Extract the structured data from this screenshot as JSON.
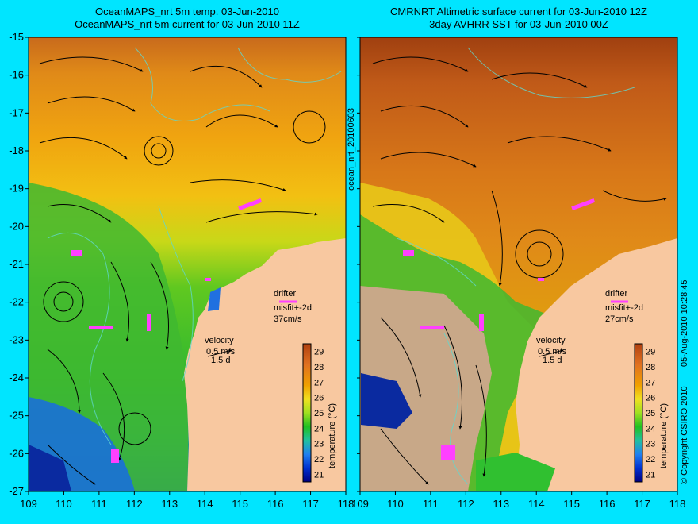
{
  "titles": {
    "left_line1": "OceanMAPS_nrt 5m temp. 03-Jun-2010",
    "left_line2": "OceanMAPS_nrt 5m current for 03-Jun-2010 11Z",
    "right_line1": "CMRNRT Altimetric surface current for 03-Jun-2010 12Z",
    "right_line2": "3day AVHRR SST for 03-Jun-2010 00Z"
  },
  "axes": {
    "lon_ticks": [
      109,
      110,
      111,
      112,
      113,
      114,
      115,
      116,
      117,
      118
    ],
    "lat_ticks": [
      -15,
      -16,
      -17,
      -18,
      -19,
      -20,
      -21,
      -22,
      -23,
      -24,
      -25,
      -26,
      -27
    ],
    "lon_range": [
      109,
      118
    ],
    "lat_range": [
      -27,
      -15
    ]
  },
  "left_panel": {
    "drifter_label": "drifter",
    "drifter_misfit": "misfit+-2d",
    "drifter_speed": "37cm/s",
    "velocity_label": "velocity",
    "velocity_scale": "0.5 m/s",
    "velocity_time": "1.5 d"
  },
  "right_panel": {
    "drifter_label": "drifter",
    "drifter_misfit": "misfit+-2d",
    "drifter_speed": "27cm/s",
    "velocity_label": "velocity",
    "velocity_scale": "0.5 m/s",
    "velocity_time": "1.5 d"
  },
  "colorbar": {
    "label": "temperature (°C)",
    "ticks": [
      21,
      22,
      23,
      24,
      25,
      26,
      27,
      28,
      29
    ],
    "colors": [
      "#000080",
      "#0030d0",
      "#2080f0",
      "#20c0a0",
      "#20c020",
      "#a0e020",
      "#f0e020",
      "#f0a000",
      "#e07020",
      "#b04010"
    ]
  },
  "side_labels": {
    "center": "ocean_nrt_20100603",
    "right_copyright": "© Copyright CSIRO 2010",
    "right_date": "05-Aug-2010 10:28:45"
  }
}
